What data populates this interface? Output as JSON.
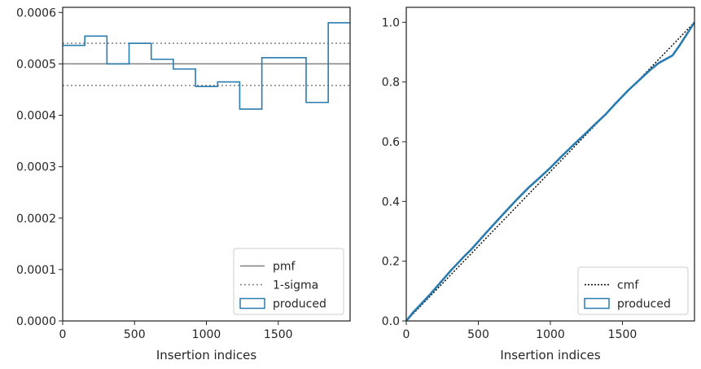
{
  "colors": {
    "produced": "#2a7bb0",
    "pmf": "#808080",
    "sigma": "#808080",
    "cmf": "#000000",
    "axes": "#262626"
  },
  "chart_data": [
    {
      "type": "line",
      "xlabel": "Insertion indices",
      "ylabel": "",
      "xlim": [
        0,
        2000
      ],
      "ylim": [
        0,
        0.00061
      ],
      "xticks": [
        0,
        500,
        1000,
        1500
      ],
      "xtick_labels": [
        "0",
        "500",
        "1000",
        "1500"
      ],
      "yticks": [
        0,
        0.0001,
        0.0002,
        0.0003,
        0.0004,
        0.0005,
        0.0006
      ],
      "ytick_labels": [
        "0.0000",
        "0.0001",
        "0.0002",
        "0.0003",
        "0.0004",
        "0.0005",
        "0.0006"
      ],
      "grid": false,
      "legend_position": "bottom-right",
      "legend": [
        "pmf",
        "1-sigma",
        "produced"
      ],
      "pmf": 0.0005,
      "sigma_band": [
        0.000458,
        0.00054
      ],
      "produced_histogram": {
        "bin_edges": [
          0,
          154,
          308,
          462,
          616,
          770,
          924,
          1078,
          1232,
          1386,
          1540,
          1694,
          1848,
          2000
        ],
        "values": [
          0.000536,
          0.000554,
          0.0005,
          0.00054,
          0.000509,
          0.00049,
          0.000456,
          0.000465,
          0.000412,
          0.000512,
          0.000512,
          0.000425,
          0.00058
        ]
      }
    },
    {
      "type": "line",
      "xlabel": "Insertion indices",
      "ylabel": "",
      "xlim": [
        0,
        2000
      ],
      "ylim": [
        0,
        1.05
      ],
      "xticks": [
        0,
        500,
        1000,
        1500
      ],
      "xtick_labels": [
        "0",
        "500",
        "1000",
        "1500"
      ],
      "yticks": [
        0,
        0.2,
        0.4,
        0.6,
        0.8,
        1.0
      ],
      "ytick_labels": [
        "0.0",
        "0.2",
        "0.4",
        "0.6",
        "0.8",
        "1.0"
      ],
      "grid": false,
      "legend_position": "bottom-right",
      "legend": [
        "cmf",
        "produced"
      ],
      "cmf": {
        "x": [
          0,
          2000
        ],
        "y": [
          0,
          1.0
        ]
      },
      "produced": {
        "x": [
          0,
          50,
          100,
          154,
          200,
          308,
          400,
          462,
          550,
          616,
          700,
          770,
          850,
          924,
          1000,
          1078,
          1150,
          1232,
          1300,
          1386,
          1450,
          1540,
          1600,
          1694,
          1750,
          1848,
          1900,
          2000
        ],
        "y": [
          0,
          0.03,
          0.055,
          0.083,
          0.108,
          0.168,
          0.215,
          0.245,
          0.293,
          0.328,
          0.372,
          0.408,
          0.447,
          0.479,
          0.513,
          0.551,
          0.585,
          0.622,
          0.654,
          0.693,
          0.727,
          0.772,
          0.799,
          0.841,
          0.863,
          0.889,
          0.925,
          1.0
        ]
      }
    }
  ]
}
